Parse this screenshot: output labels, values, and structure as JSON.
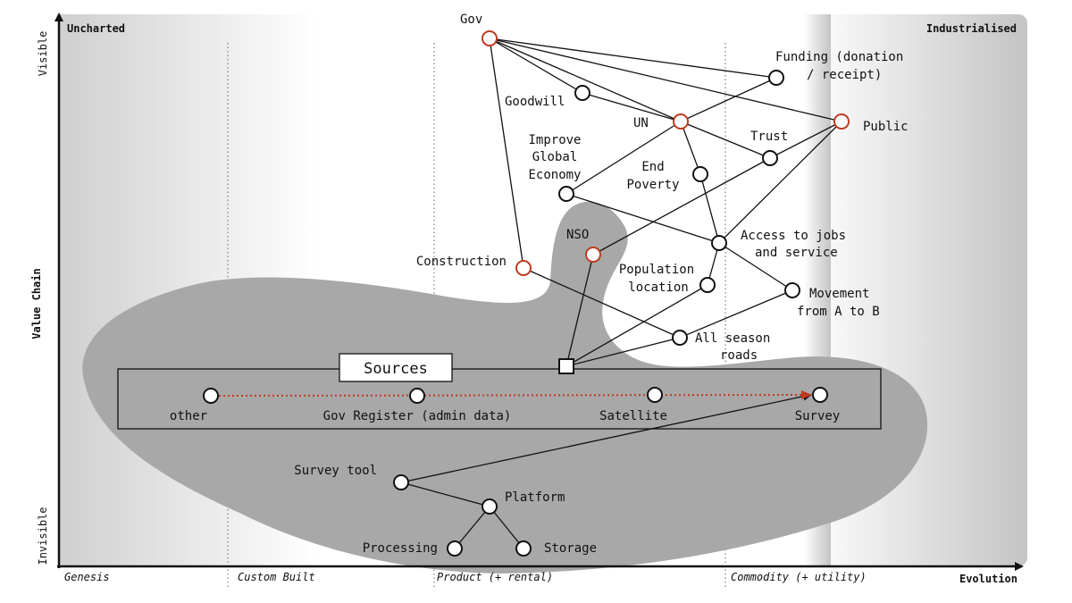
{
  "axes": {
    "top_left": "Uncharted",
    "top_right": "Industrialised",
    "y_axis": "Value Chain",
    "y_top": "Visible",
    "y_bottom": "Invisible",
    "x_axis": "Evolution"
  },
  "stages": [
    "Genesis",
    "Custom Built",
    "Product (+ rental)",
    "Commodity (+ utility)"
  ],
  "sources_box": {
    "title": "Sources"
  },
  "nodes": {
    "gov": [
      "Gov"
    ],
    "funding": [
      "Funding (donation",
      "/ receipt)"
    ],
    "goodwill": [
      "Goodwill"
    ],
    "un": [
      "UN"
    ],
    "public": [
      "Public"
    ],
    "trust": [
      "Trust"
    ],
    "improve": [
      "Improve",
      "Global",
      "Economy"
    ],
    "end_poverty": [
      "End",
      "Poverty"
    ],
    "nso": [
      "NSO"
    ],
    "construction": [
      "Construction"
    ],
    "access": [
      "Access to jobs",
      "and service"
    ],
    "population": [
      "Population",
      "location"
    ],
    "movement": [
      "Movement",
      "from A to B"
    ],
    "roads": [
      "All season",
      "roads"
    ],
    "other": [
      "other"
    ],
    "gov_register": [
      "Gov Register (admin data)"
    ],
    "satellite": [
      "Satellite"
    ],
    "survey": [
      "Survey"
    ],
    "survey_tool": [
      "Survey tool"
    ],
    "platform": [
      "Platform"
    ],
    "processing": [
      "Processing"
    ],
    "storage": [
      "Storage"
    ]
  },
  "colors": {
    "highlight_node": "#c0391f",
    "evolution_arrow": "#c0391f",
    "blob": "#a8a8a8"
  }
}
